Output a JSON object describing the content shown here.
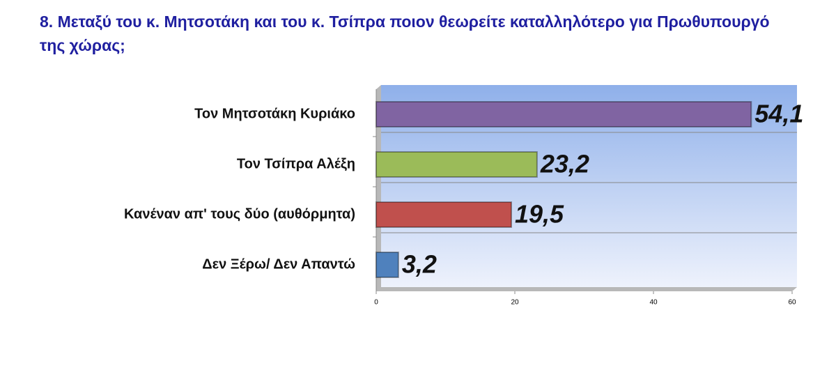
{
  "chart_data": {
    "type": "barh",
    "title": "8. Μεταξύ του κ. Μητσοτάκη και του κ. Τσίπρα ποιον θεωρείτε καταλληλότερο για Πρωθυπουργό της χώρας;",
    "categories": [
      "Τον Μητσοτάκη Κυριάκο",
      "Τον Τσίπρα Αλέξη",
      "Κανέναν απ' τους δύο (αυθόρμητα)",
      "Δεν Ξέρω/ Δεν Απαντώ"
    ],
    "values": [
      54.1,
      23.2,
      19.5,
      3.2
    ],
    "value_labels": [
      "54,1",
      "23,2",
      "19,5",
      "3,2"
    ],
    "colors": [
      "#8064a2",
      "#9bbb59",
      "#c0504d",
      "#4f81bd"
    ],
    "xlim": [
      0,
      60
    ],
    "xticks": [
      0,
      20,
      40,
      60
    ]
  }
}
